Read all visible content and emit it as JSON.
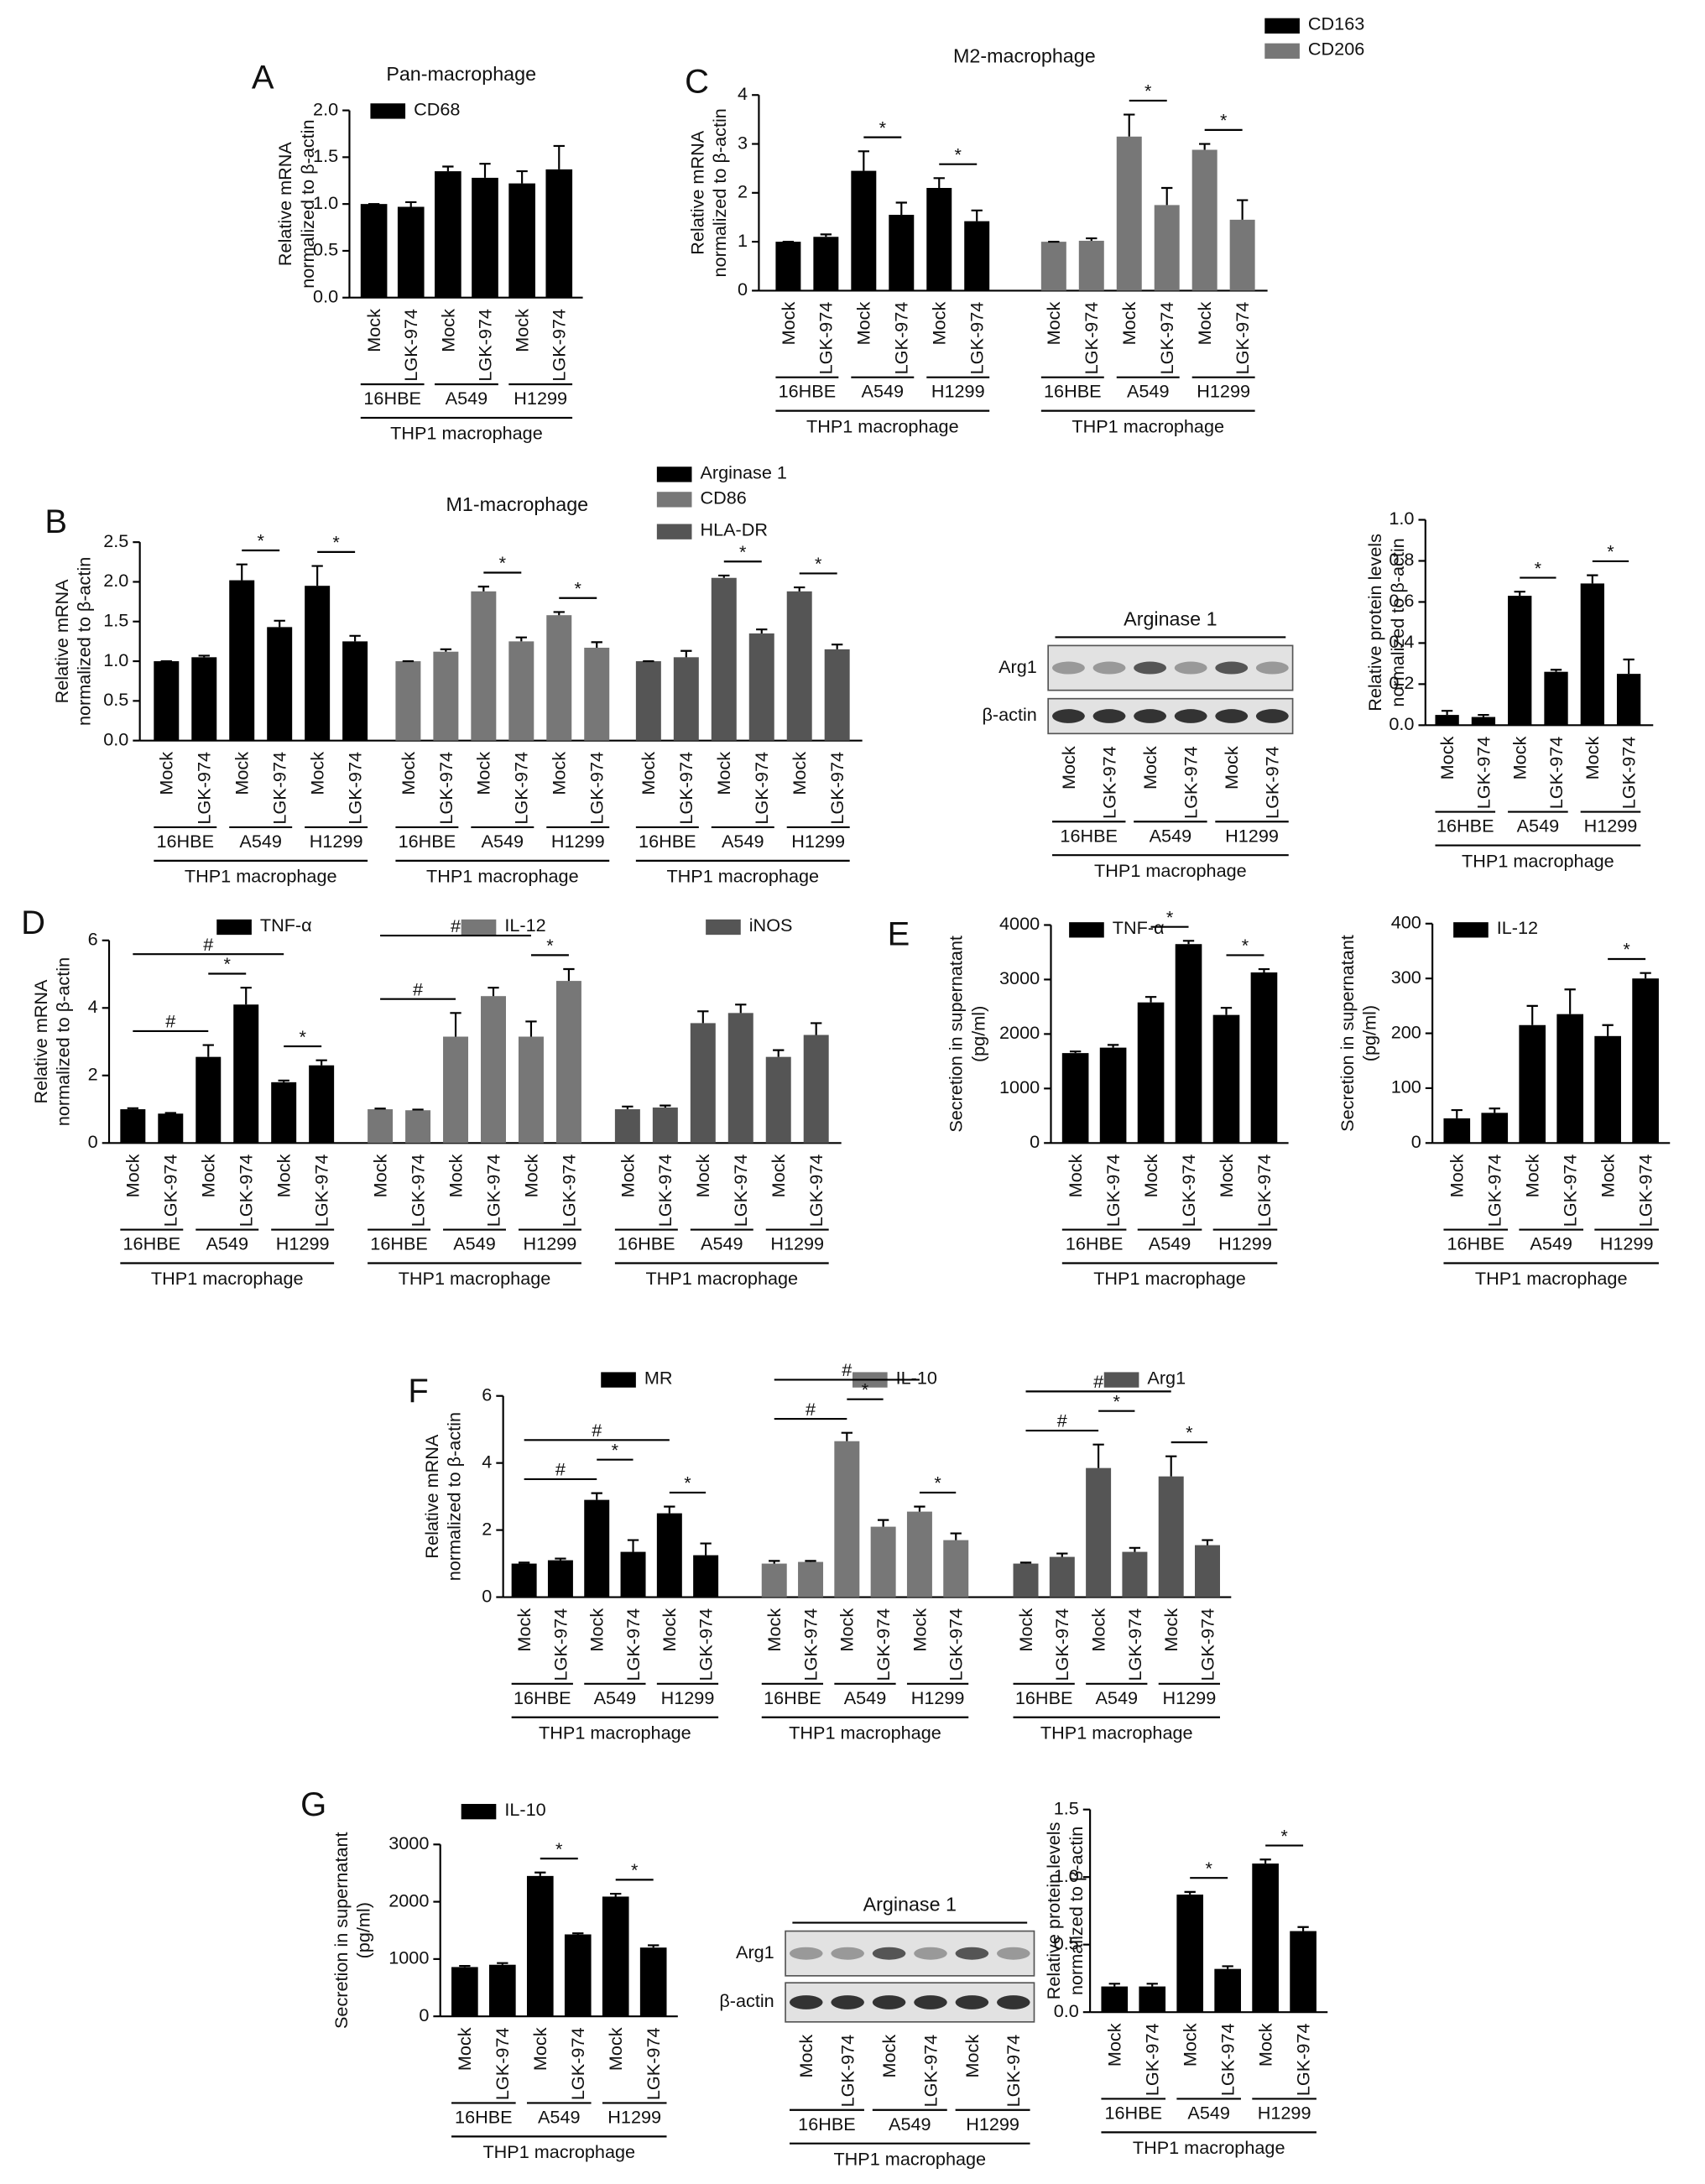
{
  "chart_data": [
    {
      "type": "bar",
      "panel": "A",
      "title": "Pan-macrophage",
      "ylabel": [
        "Relative mRNA",
        "normalized to β-actin"
      ],
      "categories": [
        "Mock",
        "LGK-974",
        "Mock",
        "LGK-974",
        "Mock",
        "LGK-974"
      ],
      "groups": [
        "16HBE",
        "A549",
        "H1299"
      ],
      "group_label": "THP1 macrophage",
      "ylim": [
        0,
        2
      ],
      "yticks": [
        {
          "value": 0,
          "label": "0.0"
        },
        0.5,
        {
          "value": 1,
          "label": "1.0"
        },
        1.5,
        {
          "value": 2,
          "label": "2.0"
        }
      ],
      "series": [
        {
          "name": "CD68",
          "color": "#000000",
          "values": [
            1.0,
            0.97,
            1.35,
            1.28,
            1.22,
            1.37
          ],
          "errors": [
            0,
            0.05,
            0.05,
            0.15,
            0.13,
            0.25
          ],
          "annotations": []
        }
      ]
    },
    {
      "type": "bar",
      "panel": "C",
      "title": "M2-macrophage",
      "ylabel": [
        "Relative mRNA",
        "normalized to β-actin"
      ],
      "categories": [
        "Mock",
        "LGK-974",
        "Mock",
        "LGK-974",
        "Mock",
        "LGK-974"
      ],
      "groups": [
        "16HBE",
        "A549",
        "H1299"
      ],
      "group_label": "THP1 macrophage",
      "ylim": [
        0,
        4
      ],
      "yticks": [
        0,
        1,
        2,
        3,
        4
      ],
      "series": [
        {
          "name": "CD163",
          "color": "#000000",
          "values": [
            1.0,
            1.1,
            2.45,
            1.55,
            2.1,
            1.42
          ],
          "errors": [
            0,
            0.05,
            0.4,
            0.25,
            0.2,
            0.22
          ],
          "annotations": [
            {
              "text": "*",
              "between": [
                2,
                3
              ]
            },
            {
              "text": "*",
              "between": [
                4,
                5
              ]
            }
          ]
        },
        {
          "name": "CD206",
          "color": "#777777",
          "values": [
            1.0,
            1.02,
            3.15,
            1.75,
            2.88,
            1.45
          ],
          "errors": [
            0,
            0.05,
            0.45,
            0.35,
            0.12,
            0.4
          ],
          "annotations": [
            {
              "text": "*",
              "between": [
                2,
                3
              ]
            },
            {
              "text": "*",
              "between": [
                4,
                5
              ]
            }
          ]
        }
      ]
    },
    {
      "type": "bar",
      "panel": "B",
      "title": "M1-macrophage",
      "ylabel": [
        "Relative mRNA",
        "normalized to β-actin"
      ],
      "categories": [
        "Mock",
        "LGK-974",
        "Mock",
        "LGK-974",
        "Mock",
        "LGK-974"
      ],
      "groups": [
        "16HBE",
        "A549",
        "H1299"
      ],
      "group_label": "THP1 macrophage",
      "ylim": [
        0,
        2.5
      ],
      "yticks": [
        {
          "value": 0,
          "label": "0.0"
        },
        0.5,
        {
          "value": 1,
          "label": "1.0"
        },
        1.5,
        {
          "value": 2,
          "label": "2.0"
        },
        2.5
      ],
      "series": [
        {
          "name": "Arginase 1",
          "color": "#000000",
          "values": [
            1.0,
            1.05,
            2.02,
            1.43,
            1.95,
            1.25
          ],
          "errors": [
            0,
            0.02,
            0.2,
            0.08,
            0.25,
            0.07
          ],
          "annotations": [
            {
              "text": "*",
              "between": [
                2,
                3
              ]
            },
            {
              "text": "*",
              "between": [
                4,
                5
              ]
            }
          ]
        },
        {
          "name": "CD86",
          "color": "#777777",
          "values": [
            1.0,
            1.12,
            1.88,
            1.25,
            1.58,
            1.17
          ],
          "errors": [
            0,
            0.03,
            0.06,
            0.05,
            0.04,
            0.07
          ],
          "annotations": [
            {
              "text": "*",
              "between": [
                2,
                3
              ]
            },
            {
              "text": "*",
              "between": [
                4,
                5
              ]
            }
          ]
        },
        {
          "name": "HLA-DR",
          "color": "#555555",
          "values": [
            1.0,
            1.05,
            2.05,
            1.35,
            1.88,
            1.15
          ],
          "errors": [
            0,
            0.08,
            0.03,
            0.05,
            0.05,
            0.06
          ],
          "annotations": [
            {
              "text": "*",
              "between": [
                2,
                3
              ]
            },
            {
              "text": "*",
              "between": [
                4,
                5
              ]
            }
          ]
        }
      ]
    },
    {
      "type": "bar",
      "ylabel": [
        "Relative protein levels",
        "normalized to β-actin"
      ],
      "categories": [
        "Mock",
        "LGK-974",
        "Mock",
        "LGK-974",
        "Mock",
        "LGK-974"
      ],
      "groups": [
        "16HBE",
        "A549",
        "H1299"
      ],
      "group_label": "THP1 macrophage",
      "ylim": [
        0,
        1
      ],
      "yticks": [
        {
          "value": 0,
          "label": "0.0"
        },
        0.2,
        0.4,
        0.6,
        0.8,
        {
          "value": 1,
          "label": "1.0"
        }
      ],
      "series": [
        {
          "color": "#000000",
          "values": [
            0.05,
            0.04,
            0.63,
            0.26,
            0.69,
            0.25
          ],
          "errors": [
            0.02,
            0.01,
            0.02,
            0.01,
            0.04,
            0.07
          ],
          "annotations": [
            {
              "text": "*",
              "between": [
                2,
                3
              ]
            },
            {
              "text": "*",
              "between": [
                4,
                5
              ]
            }
          ]
        }
      ]
    },
    {
      "type": "bar",
      "panel": "D",
      "ylabel": [
        "Relative mRNA",
        "normalized to β-actin"
      ],
      "categories": [
        "Mock",
        "LGK-974",
        "Mock",
        "LGK-974",
        "Mock",
        "LGK-974"
      ],
      "groups": [
        "16HBE",
        "A549",
        "H1299"
      ],
      "group_label": "THP1 macrophage",
      "ylim": [
        0,
        6
      ],
      "yticks": [
        0,
        2,
        4,
        6
      ],
      "series": [
        {
          "name": "TNF-α",
          "color": "#000000",
          "values": [
            1.0,
            0.87,
            2.55,
            4.1,
            1.8,
            2.3
          ],
          "errors": [
            0.03,
            0.02,
            0.35,
            0.5,
            0.05,
            0.15
          ],
          "annotations": [
            {
              "text": "#",
              "between": [
                0,
                2
              ]
            },
            {
              "text": "*",
              "between": [
                2,
                3
              ]
            },
            {
              "text": "*",
              "between": [
                4,
                5
              ]
            },
            {
              "text": "#",
              "between": [
                0,
                4
              ]
            }
          ]
        },
        {
          "name": "IL-12",
          "color": "#777777",
          "values": [
            1.0,
            0.97,
            3.15,
            4.35,
            3.15,
            4.8
          ],
          "errors": [
            0.02,
            0.02,
            0.7,
            0.25,
            0.45,
            0.35
          ],
          "annotations": [
            {
              "text": "#",
              "between": [
                0,
                2
              ]
            },
            {
              "text": "*",
              "between": [
                4,
                5
              ]
            },
            {
              "text": "#",
              "between": [
                0,
                4
              ]
            }
          ]
        },
        {
          "name": "iNOS",
          "color": "#555555",
          "values": [
            1.0,
            1.05,
            3.55,
            3.85,
            2.55,
            3.2
          ],
          "errors": [
            0.08,
            0.06,
            0.35,
            0.25,
            0.2,
            0.35
          ],
          "annotations": []
        }
      ]
    },
    {
      "type": "bar",
      "panel": "E",
      "ylabel": [
        "Secretion in supernatant",
        "(pg/ml)"
      ],
      "categories": [
        "Mock",
        "LGK-974",
        "Mock",
        "LGK-974",
        "Mock",
        "LGK-974"
      ],
      "groups": [
        "16HBE",
        "A549",
        "H1299"
      ],
      "group_label": "THP1 macrophage",
      "ylim": [
        0,
        4000
      ],
      "yticks": [
        0,
        1000,
        2000,
        3000,
        4000
      ],
      "series": [
        {
          "name": "TNF-α",
          "color": "#000000",
          "values": [
            1650,
            1750,
            2580,
            3650,
            2350,
            3130
          ],
          "errors": [
            30,
            50,
            100,
            60,
            130,
            60
          ],
          "annotations": [
            {
              "text": "*",
              "between": [
                2,
                3
              ]
            },
            {
              "text": "*",
              "between": [
                4,
                5
              ]
            }
          ]
        }
      ]
    },
    {
      "type": "bar",
      "ylabel": [
        "Secretion in supernatant",
        "(pg/ml)"
      ],
      "categories": [
        "Mock",
        "LGK-974",
        "Mock",
        "LGK-974",
        "Mock",
        "LGK-974"
      ],
      "groups": [
        "16HBE",
        "A549",
        "H1299"
      ],
      "group_label": "THP1 macrophage",
      "ylim": [
        0,
        400
      ],
      "yticks": [
        0,
        100,
        200,
        300,
        400
      ],
      "series": [
        {
          "name": "IL-12",
          "color": "#000000",
          "values": [
            45,
            55,
            215,
            235,
            195,
            300
          ],
          "errors": [
            15,
            8,
            35,
            45,
            20,
            10
          ],
          "annotations": [
            {
              "text": "*",
              "between": [
                4,
                5
              ]
            }
          ]
        }
      ]
    },
    {
      "type": "bar",
      "panel": "F",
      "ylabel": [
        "Relative mRNA",
        "normalized to β-actin"
      ],
      "categories": [
        "Mock",
        "LGK-974",
        "Mock",
        "LGK-974",
        "Mock",
        "LGK-974"
      ],
      "groups": [
        "16HBE",
        "A549",
        "H1299"
      ],
      "group_label": "THP1 macrophage",
      "ylim": [
        0,
        6
      ],
      "yticks": [
        0,
        2,
        4,
        6
      ],
      "series": [
        {
          "name": "MR",
          "color": "#000000",
          "values": [
            1.0,
            1.1,
            2.9,
            1.35,
            2.5,
            1.25
          ],
          "errors": [
            0.03,
            0.05,
            0.2,
            0.35,
            0.2,
            0.35
          ],
          "annotations": [
            {
              "text": "#",
              "between": [
                0,
                2
              ]
            },
            {
              "text": "*",
              "between": [
                2,
                3
              ]
            },
            {
              "text": "*",
              "between": [
                4,
                5
              ]
            },
            {
              "text": "#",
              "between": [
                0,
                4
              ]
            }
          ]
        },
        {
          "name": "IL-10",
          "color": "#777777",
          "values": [
            1.0,
            1.05,
            4.65,
            2.1,
            2.55,
            1.7
          ],
          "errors": [
            0.08,
            0.03,
            0.25,
            0.2,
            0.15,
            0.2
          ],
          "annotations": [
            {
              "text": "#",
              "between": [
                0,
                2
              ]
            },
            {
              "text": "*",
              "between": [
                2,
                3
              ]
            },
            {
              "text": "*",
              "between": [
                4,
                5
              ]
            },
            {
              "text": "#",
              "between": [
                0,
                4
              ]
            }
          ]
        },
        {
          "name": "Arg1",
          "color": "#555555",
          "values": [
            1.0,
            1.2,
            3.85,
            1.35,
            3.6,
            1.55
          ],
          "errors": [
            0.03,
            0.1,
            0.7,
            0.12,
            0.6,
            0.15
          ],
          "annotations": [
            {
              "text": "#",
              "between": [
                0,
                2
              ]
            },
            {
              "text": "*",
              "between": [
                2,
                3
              ]
            },
            {
              "text": "*",
              "between": [
                4,
                5
              ]
            },
            {
              "text": "#",
              "between": [
                0,
                4
              ]
            }
          ]
        }
      ]
    },
    {
      "type": "bar",
      "panel": "G",
      "ylabel": [
        "Secretion in supernatant",
        "(pg/ml)"
      ],
      "categories": [
        "Mock",
        "LGK-974",
        "Mock",
        "LGK-974",
        "Mock",
        "LGK-974"
      ],
      "groups": [
        "16HBE",
        "A549",
        "H1299"
      ],
      "group_label": "THP1 macrophage",
      "ylim": [
        0,
        3000
      ],
      "yticks": [
        0,
        1000,
        2000,
        3000
      ],
      "series": [
        {
          "name": "IL-10",
          "color": "#000000",
          "values": [
            860,
            900,
            2450,
            1430,
            2090,
            1200
          ],
          "errors": [
            20,
            30,
            60,
            20,
            50,
            40
          ],
          "annotations": [
            {
              "text": "*",
              "between": [
                2,
                3
              ]
            },
            {
              "text": "*",
              "between": [
                4,
                5
              ]
            }
          ]
        }
      ]
    },
    {
      "type": "bar",
      "ylabel": [
        "Relative protein levels",
        "normalized to β-actin"
      ],
      "categories": [
        "Mock",
        "LGK-974",
        "Mock",
        "LGK-974",
        "Mock",
        "LGK-974"
      ],
      "groups": [
        "16HBE",
        "A549",
        "H1299"
      ],
      "group_label": "THP1 macrophage",
      "ylim": [
        0,
        1.5
      ],
      "yticks": [
        {
          "value": 0,
          "label": "0.0"
        },
        0.5,
        {
          "value": 1,
          "label": "1.0"
        },
        1.5
      ],
      "series": [
        {
          "color": "#000000",
          "values": [
            0.19,
            0.19,
            0.87,
            0.32,
            1.1,
            0.6
          ],
          "errors": [
            0.02,
            0.02,
            0.02,
            0.02,
            0.03,
            0.03
          ],
          "annotations": [
            {
              "text": "*",
              "between": [
                2,
                3
              ]
            },
            {
              "text": "*",
              "between": [
                4,
                5
              ]
            }
          ]
        }
      ]
    }
  ],
  "blots": [
    {
      "title": "Arginase 1",
      "rows": [
        "Arg1",
        "β-actin"
      ],
      "categories": [
        "Mock",
        "LGK-974",
        "Mock",
        "LGK-974",
        "Mock",
        "LGK-974"
      ],
      "groups": [
        "16HBE",
        "A549",
        "H1299"
      ],
      "group_label": "THP1 macrophage"
    },
    {
      "title": "Arginase 1",
      "rows": [
        "Arg1",
        "β-actin"
      ],
      "categories": [
        "Mock",
        "LGK-974",
        "Mock",
        "LGK-974",
        "Mock",
        "LGK-974"
      ],
      "groups": [
        "16HBE",
        "A549",
        "H1299"
      ],
      "group_label": "THP1 macrophage"
    }
  ]
}
